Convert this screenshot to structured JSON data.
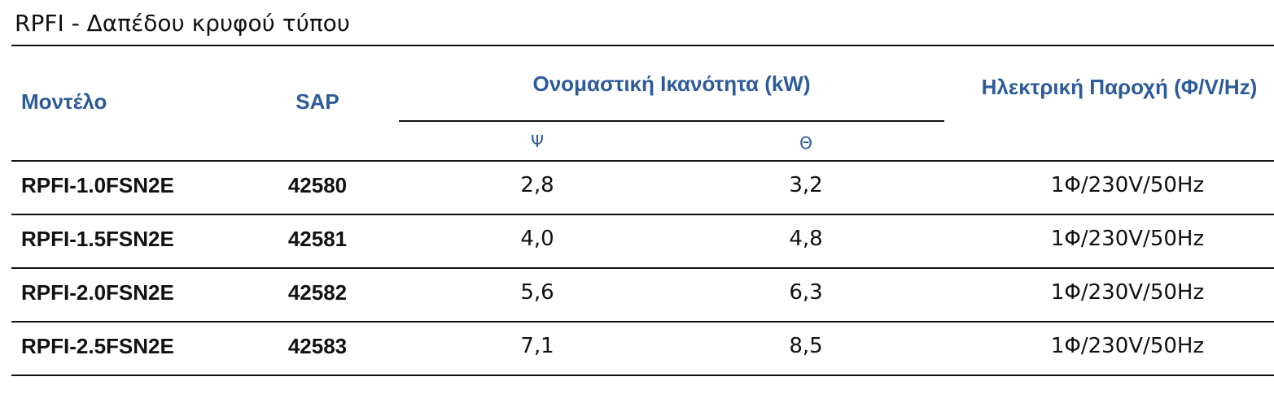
{
  "title": "RPFI - Δαπέδου κρυφού τύπου",
  "table": {
    "header": [
      "Μοντέλο",
      "SAP",
      "Ονομαστική Ικανότητα (kW)",
      "Ηλεκτρική Παροχή (Φ/V/Hz)"
    ],
    "subheader": [
      "Ψ",
      "Θ"
    ],
    "rows": [
      [
        "RPFI-1.0FSN2E",
        "42580",
        "2,8",
        "3,2",
        "1Φ/230V/50Hz"
      ],
      [
        "RPFI-1.5FSN2E",
        "42581",
        "4,0",
        "4,8",
        "1Φ/230V/50Hz"
      ],
      [
        "RPFI-2.0FSN2E",
        "42582",
        "5,6",
        "6,3",
        "1Φ/230V/50Hz"
      ],
      [
        "RPFI-2.5FSN2E",
        "42583",
        "7,1",
        "8,5",
        "1Φ/230V/50Hz"
      ]
    ]
  }
}
